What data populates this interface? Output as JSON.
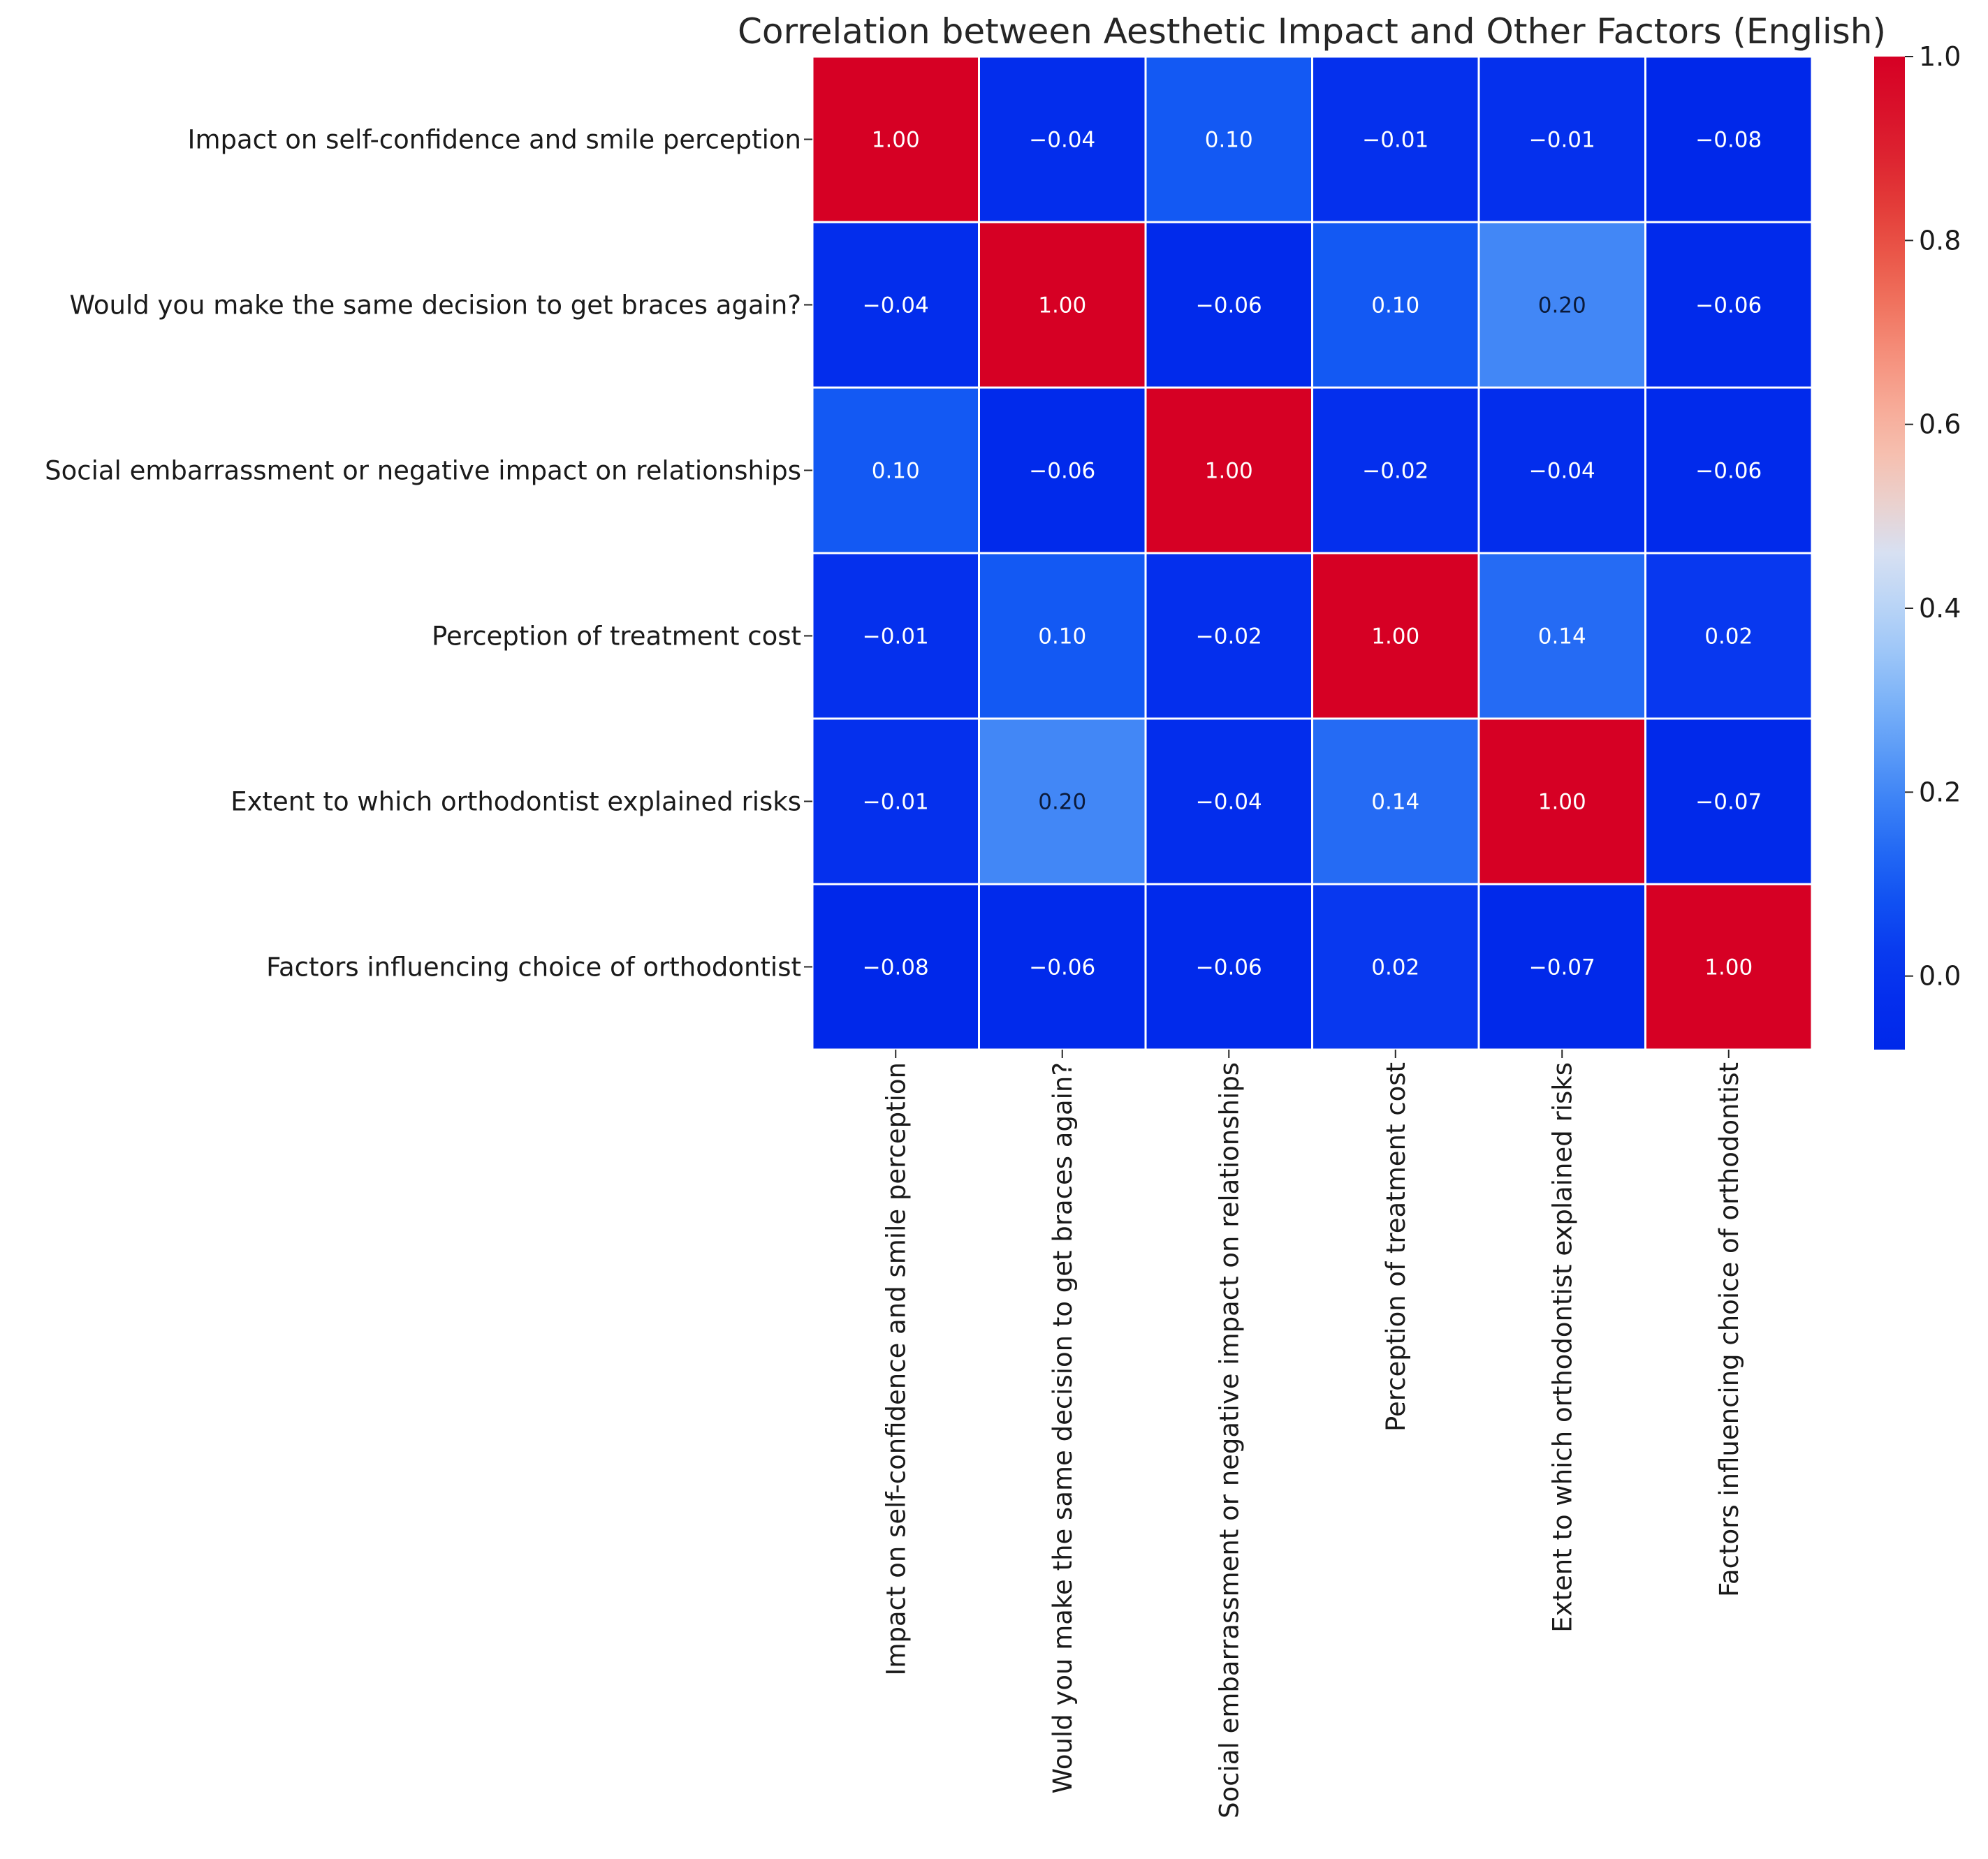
{
  "chart_data": {
    "type": "heatmap",
    "title": "Correlation between Aesthetic Impact and Other Factors (English)",
    "row_labels": [
      "Impact on self-confidence and smile perception",
      "Would you make the same decision to get braces again?",
      "Social embarrassment or negative impact on relationships",
      "Perception of treatment cost",
      "Extent to which orthodontist explained risks",
      "Factors influencing choice of orthodontist"
    ],
    "col_labels": [
      "Impact on self-confidence and smile perception",
      "Would you make the same decision to get braces again?",
      "Social embarrassment or negative impact on relationships",
      "Perception of treatment cost",
      "Extent to which orthodontist explained risks",
      "Factors influencing choice of orthodontist"
    ],
    "values": [
      [
        1.0,
        -0.04,
        0.1,
        -0.01,
        -0.01,
        -0.08
      ],
      [
        -0.04,
        1.0,
        -0.06,
        0.1,
        0.2,
        -0.06
      ],
      [
        0.1,
        -0.06,
        1.0,
        -0.02,
        -0.04,
        -0.06
      ],
      [
        -0.01,
        0.1,
        -0.02,
        1.0,
        0.14,
        0.02
      ],
      [
        -0.01,
        0.2,
        -0.04,
        0.14,
        1.0,
        -0.07
      ],
      [
        -0.08,
        -0.06,
        -0.06,
        0.02,
        -0.07,
        1.0
      ]
    ],
    "value_labels": [
      [
        "1.00",
        "−0.04",
        "0.10",
        "−0.01",
        "−0.01",
        "−0.08"
      ],
      [
        "−0.04",
        "1.00",
        "−0.06",
        "0.10",
        "0.20",
        "−0.06"
      ],
      [
        "0.10",
        "−0.06",
        "1.00",
        "−0.02",
        "−0.04",
        "−0.06"
      ],
      [
        "−0.01",
        "0.10",
        "−0.02",
        "1.00",
        "0.14",
        "0.02"
      ],
      [
        "−0.01",
        "0.20",
        "−0.04",
        "0.14",
        "1.00",
        "−0.07"
      ],
      [
        "−0.08",
        "−0.06",
        "−0.06",
        "0.02",
        "−0.07",
        "1.00"
      ]
    ],
    "colormap": "coolwarm",
    "colorbar": {
      "range": [
        -0.08,
        1.0
      ],
      "ticks": [
        0.0,
        0.2,
        0.4,
        0.6,
        0.8,
        1.0
      ],
      "tick_labels": [
        "0.0",
        "0.2",
        "0.4",
        "0.6",
        "0.8",
        "1.0"
      ],
      "placement": "right"
    },
    "grid": true,
    "colors": {
      "low": "#0028ea",
      "mid": "#d8dff0",
      "high": "#d80024",
      "cell_border": "#ffffff"
    }
  }
}
